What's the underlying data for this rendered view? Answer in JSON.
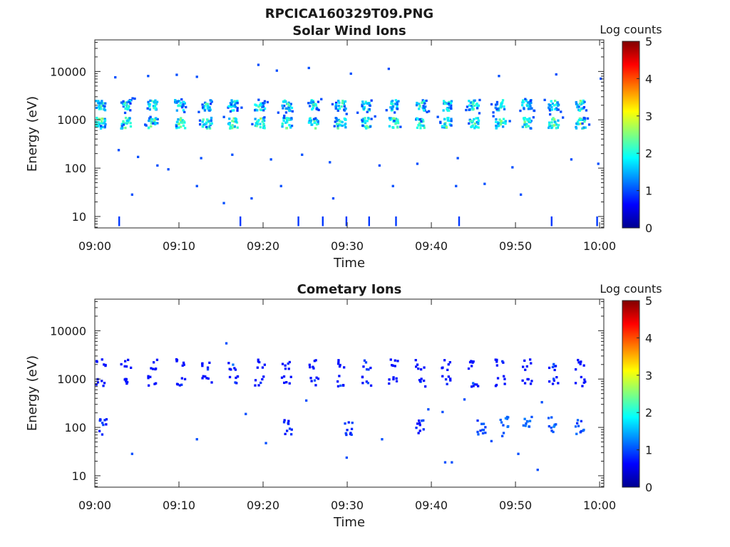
{
  "title": "RPCICA160329T09.PNG",
  "chart_data": [
    {
      "type": "heatmap",
      "title": "Solar Wind Ions",
      "xlabel": "Time",
      "ylabel": "Energy (eV)",
      "x_ticks": [
        "09:00",
        "09:10",
        "09:20",
        "09:30",
        "09:40",
        "09:50",
        "10:00"
      ],
      "y_ticks": [
        "10",
        "100",
        "1000",
        "10000"
      ],
      "x_range_minutes": [
        0,
        60.5
      ],
      "y_range_eV": [
        5.8,
        45000
      ],
      "y_scale": "log",
      "colorbar": {
        "label": "Log counts",
        "ticks": [
          "0",
          "1",
          "2",
          "3",
          "4",
          "5"
        ],
        "range": [
          0,
          5
        ],
        "colormap": "jet"
      },
      "beam_times_minutes": [
        0.6,
        3.6,
        6.8,
        10.0,
        13.2,
        16.3,
        19.5,
        22.7,
        25.9,
        29.1,
        32.2,
        35.4,
        38.6,
        41.7,
        44.9,
        48.1,
        51.2,
        54.4,
        57.6
      ],
      "beam_energies_eV": [
        2100,
        900
      ],
      "beam_peak_log_counts": 2.7,
      "scatter_points": [
        {
          "t": 2.3,
          "e": 8000,
          "c": 1.0
        },
        {
          "t": 6.2,
          "e": 8500,
          "c": 1.0
        },
        {
          "t": 9.6,
          "e": 9000,
          "c": 1.0
        },
        {
          "t": 12.0,
          "e": 8200,
          "c": 1.0
        },
        {
          "t": 19.3,
          "e": 14500,
          "c": 1.0
        },
        {
          "t": 21.5,
          "e": 11000,
          "c": 1.0
        },
        {
          "t": 25.3,
          "e": 12500,
          "c": 1.0
        },
        {
          "t": 30.3,
          "e": 9500,
          "c": 1.0
        },
        {
          "t": 34.8,
          "e": 12000,
          "c": 1.0
        },
        {
          "t": 47.9,
          "e": 8500,
          "c": 1.0
        },
        {
          "t": 54.7,
          "e": 9200,
          "c": 1.0
        },
        {
          "t": 60.0,
          "e": 7500,
          "c": 1.0
        },
        {
          "t": 2.7,
          "e": 250,
          "c": 1.0
        },
        {
          "t": 5.0,
          "e": 180,
          "c": 1.0
        },
        {
          "t": 7.3,
          "e": 120,
          "c": 1.0
        },
        {
          "t": 8.6,
          "e": 100,
          "c": 1.0
        },
        {
          "t": 12.5,
          "e": 170,
          "c": 1.0
        },
        {
          "t": 16.2,
          "e": 200,
          "c": 1.0
        },
        {
          "t": 20.8,
          "e": 160,
          "c": 1.0
        },
        {
          "t": 24.5,
          "e": 200,
          "c": 1.0
        },
        {
          "t": 27.8,
          "e": 140,
          "c": 1.0
        },
        {
          "t": 33.7,
          "e": 120,
          "c": 1.0
        },
        {
          "t": 38.2,
          "e": 130,
          "c": 1.0
        },
        {
          "t": 43.0,
          "e": 170,
          "c": 1.0
        },
        {
          "t": 49.5,
          "e": 110,
          "c": 1.0
        },
        {
          "t": 56.5,
          "e": 160,
          "c": 1.0
        },
        {
          "t": 59.7,
          "e": 130,
          "c": 1.0
        },
        {
          "t": 4.3,
          "e": 30,
          "c": 1.0
        },
        {
          "t": 12.0,
          "e": 45,
          "c": 1.0
        },
        {
          "t": 15.2,
          "e": 20,
          "c": 1.0
        },
        {
          "t": 18.5,
          "e": 25,
          "c": 1.0
        },
        {
          "t": 22.0,
          "e": 45,
          "c": 1.0
        },
        {
          "t": 28.2,
          "e": 25,
          "c": 1.0
        },
        {
          "t": 35.3,
          "e": 45,
          "c": 1.0
        },
        {
          "t": 42.8,
          "e": 45,
          "c": 1.0
        },
        {
          "t": 46.2,
          "e": 50,
          "c": 1.0
        },
        {
          "t": 50.5,
          "e": 30,
          "c": 1.0
        }
      ],
      "vertical_streaks_minutes": [
        2.8,
        17.2,
        24.1,
        27.0,
        29.8,
        32.5,
        35.7,
        43.2,
        54.2,
        59.6
      ]
    },
    {
      "type": "heatmap",
      "title": "Cometary Ions",
      "xlabel": "Time",
      "ylabel": "Energy (eV)",
      "x_ticks": [
        "09:00",
        "09:10",
        "09:20",
        "09:30",
        "09:40",
        "09:50",
        "10:00"
      ],
      "y_ticks": [
        "10",
        "100",
        "1000",
        "10000"
      ],
      "x_range_minutes": [
        0,
        60.5
      ],
      "y_range_eV": [
        5.8,
        45000
      ],
      "y_scale": "log",
      "colorbar": {
        "label": "Log counts",
        "ticks": [
          "0",
          "1",
          "2",
          "3",
          "4",
          "5"
        ],
        "range": [
          0,
          5
        ],
        "colormap": "jet"
      },
      "beam_times_minutes": [
        0.6,
        3.6,
        6.8,
        10.0,
        13.2,
        16.3,
        19.5,
        22.7,
        25.9,
        29.1,
        32.2,
        35.4,
        38.6,
        41.7,
        44.9,
        48.1,
        51.2,
        54.4,
        57.6
      ],
      "beam_energies_eV": [
        2100,
        950
      ],
      "beam_peak_log_counts": 1.3,
      "scatter_points": [
        {
          "t": 15.5,
          "e": 5800,
          "c": 1.0
        },
        {
          "t": 17.8,
          "e": 200,
          "c": 1.0
        },
        {
          "t": 25.0,
          "e": 380,
          "c": 1.0
        },
        {
          "t": 12.0,
          "e": 60,
          "c": 1.0
        },
        {
          "t": 4.3,
          "e": 30,
          "c": 1.0
        },
        {
          "t": 20.2,
          "e": 50,
          "c": 1.0
        },
        {
          "t": 29.8,
          "e": 25,
          "c": 1.0
        },
        {
          "t": 34.0,
          "e": 60,
          "c": 1.0
        },
        {
          "t": 39.5,
          "e": 250,
          "c": 1.0
        },
        {
          "t": 41.2,
          "e": 220,
          "c": 1.0
        },
        {
          "t": 43.8,
          "e": 400,
          "c": 1.0
        },
        {
          "t": 46.0,
          "e": 80,
          "c": 1.0
        },
        {
          "t": 48.3,
          "e": 70,
          "c": 1.0
        },
        {
          "t": 50.2,
          "e": 30,
          "c": 1.0
        },
        {
          "t": 52.5,
          "e": 14,
          "c": 1.0
        },
        {
          "t": 53.0,
          "e": 350,
          "c": 1.0
        },
        {
          "t": 41.5,
          "e": 20,
          "c": 1.0
        },
        {
          "t": 42.3,
          "e": 20,
          "c": 1.0
        },
        {
          "t": 47.0,
          "e": 55,
          "c": 1.0
        }
      ],
      "low_energy_clusters": [
        {
          "t": 45.8,
          "e": 110,
          "c": 1.2
        },
        {
          "t": 48.5,
          "e": 120,
          "c": 1.3
        },
        {
          "t": 51.3,
          "e": 125,
          "c": 1.4
        },
        {
          "t": 54.3,
          "e": 115,
          "c": 1.3
        },
        {
          "t": 57.5,
          "e": 110,
          "c": 1.2
        },
        {
          "t": 0.9,
          "e": 105,
          "c": 1.0
        },
        {
          "t": 22.8,
          "e": 110,
          "c": 1.0
        },
        {
          "t": 30.0,
          "e": 100,
          "c": 1.0
        },
        {
          "t": 38.5,
          "e": 100,
          "c": 1.0
        }
      ]
    }
  ]
}
